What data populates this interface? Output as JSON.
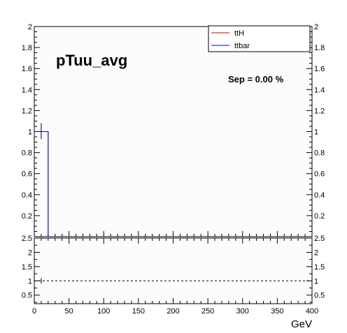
{
  "chart_data": [
    {
      "type": "histogram",
      "title": "pTuu_avg",
      "annotation": "Sep = 0.00 %",
      "xlabel": "",
      "ylabel": "",
      "xlim": [
        0,
        400
      ],
      "ylim": [
        0,
        2
      ],
      "y_ticks": [
        "2",
        "1.8",
        "1.6",
        "1.4",
        "1.2",
        "1",
        "0.8",
        "0.6",
        "0.4",
        "0.2"
      ],
      "legend_position": "top-right",
      "bin_width": 20,
      "series": [
        {
          "name": "ttH",
          "color": "#cc0000",
          "bins": [
            [
              0,
              20,
              1.0
            ]
          ]
        },
        {
          "name": "ttbar",
          "color": "#0000cc",
          "bins": [
            [
              0,
              20,
              1.0
            ]
          ]
        }
      ],
      "error_bar": {
        "x": 10,
        "y": 1.0,
        "low": 0.93,
        "high": 1.08
      }
    },
    {
      "type": "ratio",
      "title": "",
      "xlabel": "GeV",
      "ylabel": "",
      "xlim": [
        0,
        400
      ],
      "ylim": [
        0.2,
        2.5
      ],
      "x_ticks": [
        "0",
        "50",
        "100",
        "150",
        "200",
        "250",
        "300",
        "350",
        "400"
      ],
      "y_ticks": [
        "2.5",
        "2",
        "1.5",
        "1",
        "0.5"
      ],
      "reference_line": 1,
      "points": [
        {
          "x": 10,
          "y": 1.0
        }
      ]
    }
  ]
}
